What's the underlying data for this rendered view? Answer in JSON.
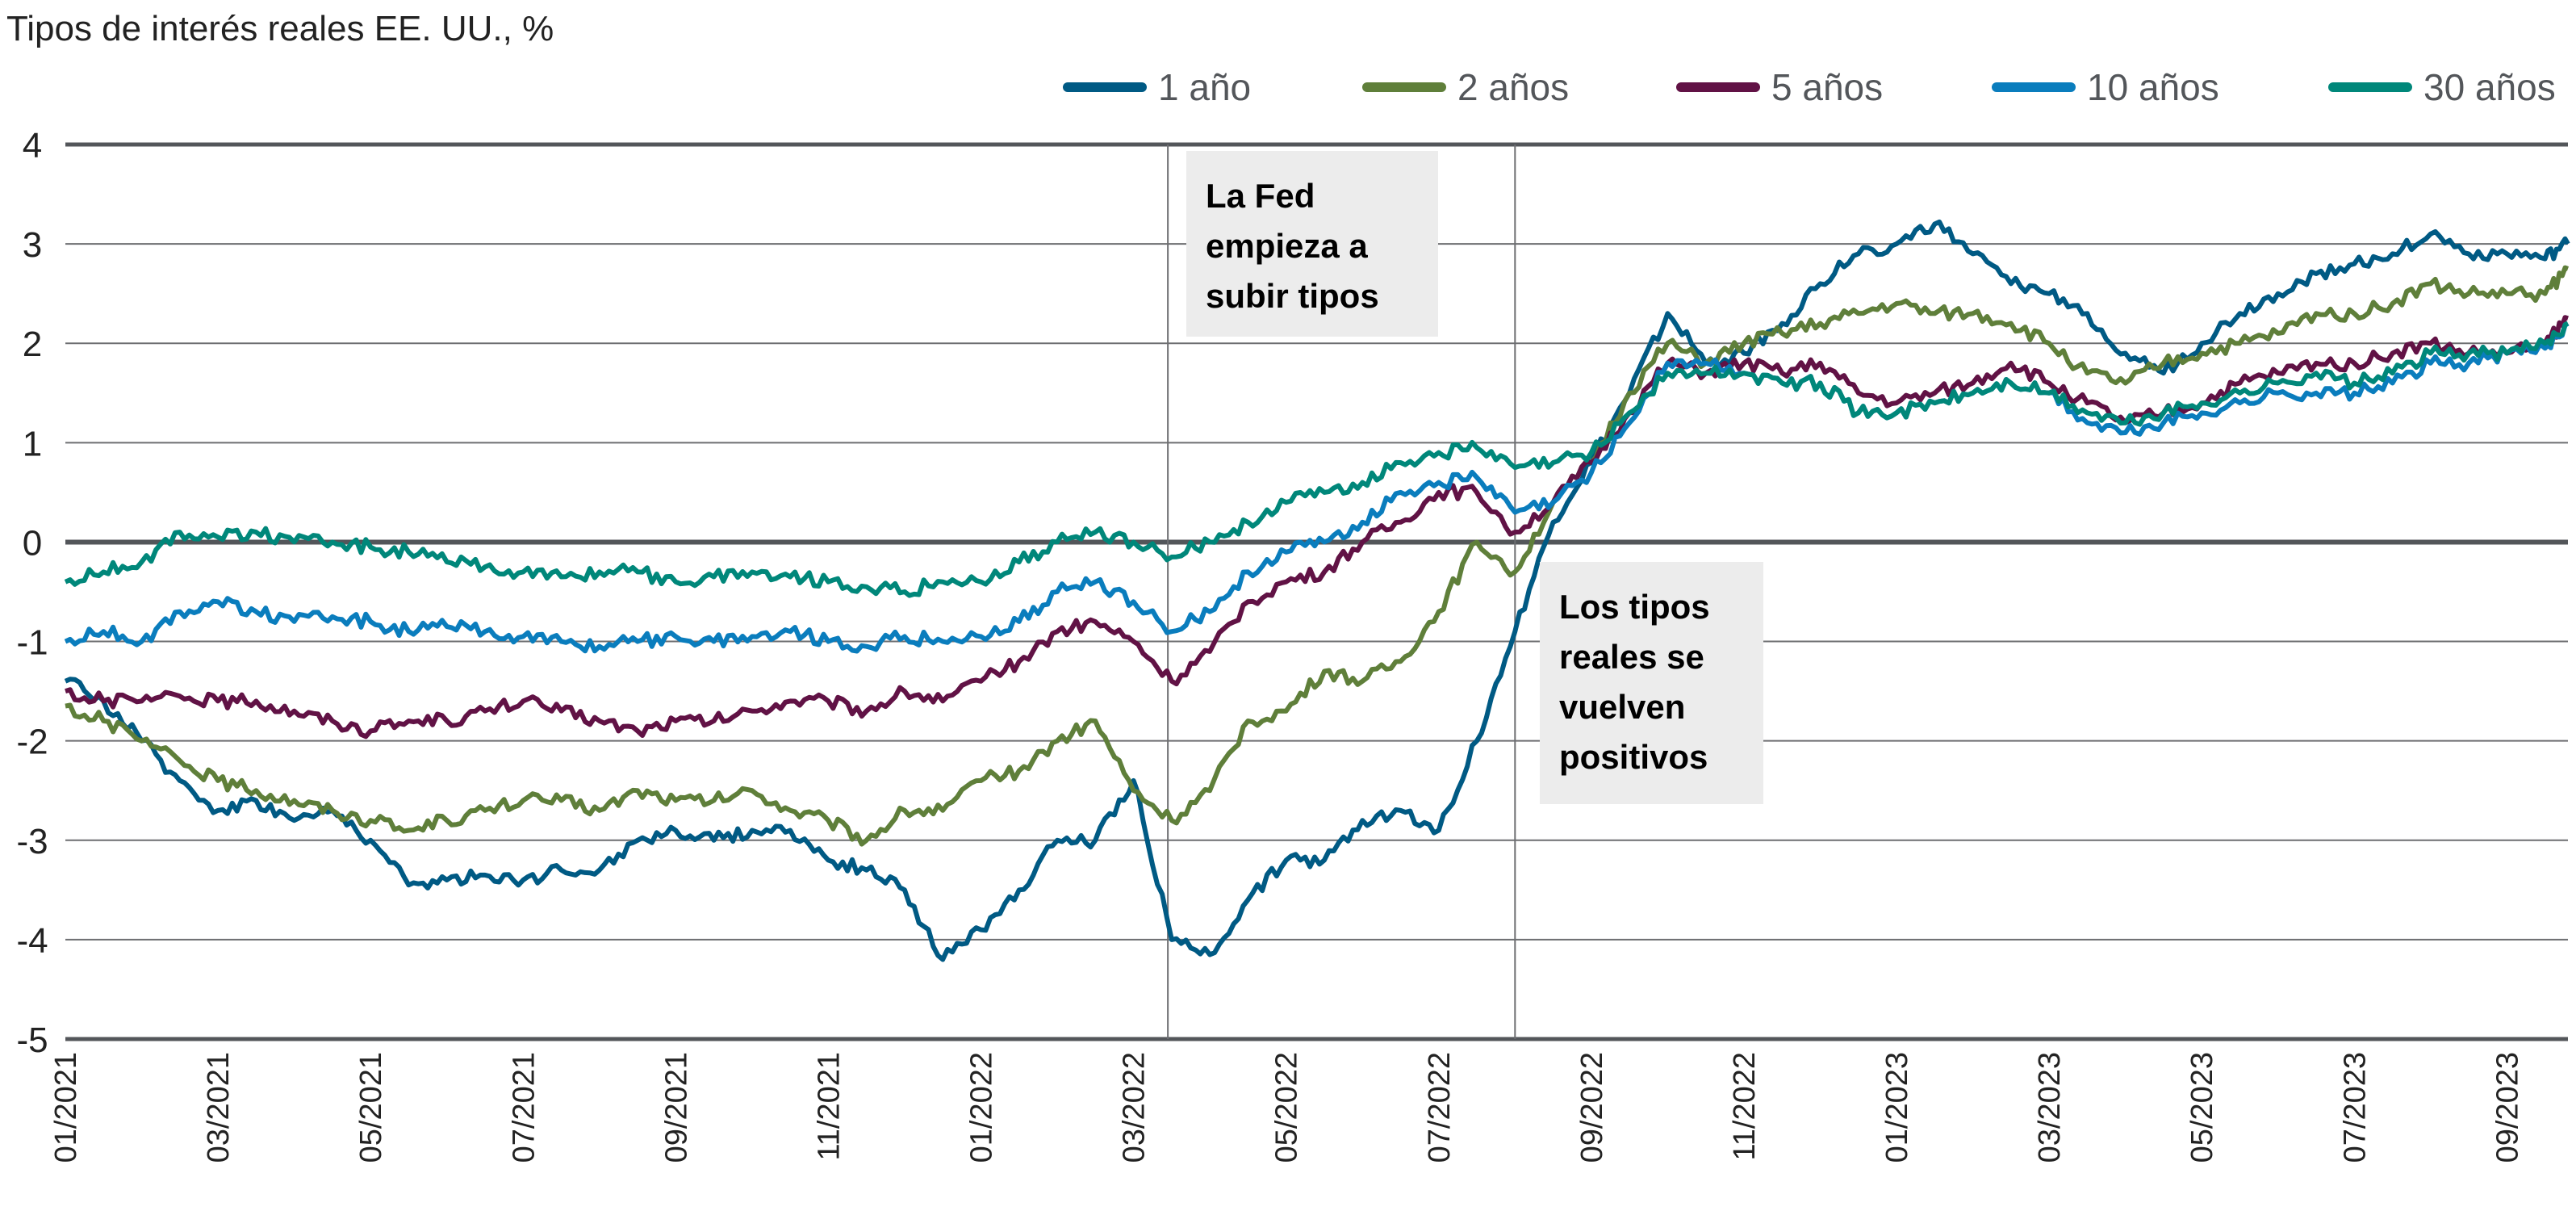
{
  "chart_data": {
    "type": "line",
    "title": "Tipos de interés reales EE. UU., %",
    "xlabel": "",
    "ylabel": "",
    "ylim": [
      -5,
      4
    ],
    "yticks": [
      4,
      3,
      2,
      1,
      0,
      -1,
      -2,
      -3,
      -4,
      -5
    ],
    "x_unit": "months since 01/2021",
    "xlim": [
      0,
      32.8
    ],
    "xtick_labels": [
      "01/2021",
      "03/2021",
      "05/2021",
      "07/2021",
      "09/2021",
      "11/2021",
      "01/2022",
      "03/2022",
      "05/2022",
      "07/2022",
      "09/2022",
      "11/2022",
      "01/2023",
      "03/2023",
      "05/2023",
      "07/2023",
      "09/2023"
    ],
    "xtick_values": [
      0,
      2,
      4,
      6,
      8,
      10,
      12,
      14,
      16,
      18,
      20,
      22,
      24,
      26,
      28,
      30,
      32
    ],
    "grid": true,
    "legend_position": "top-right",
    "x": [
      0,
      0.5,
      1,
      1.5,
      2,
      2.5,
      3,
      3.5,
      4,
      4.5,
      5,
      5.5,
      6,
      6.5,
      7,
      7.5,
      8,
      8.5,
      9,
      9.5,
      10,
      10.5,
      11,
      11.5,
      12,
      12.5,
      13,
      13.5,
      14,
      14.5,
      15,
      15.5,
      16,
      16.5,
      17,
      17.5,
      18,
      18.5,
      19,
      19.5,
      20,
      20.5,
      21,
      21.5,
      22,
      22.5,
      23,
      23.5,
      24,
      24.5,
      25,
      25.5,
      26,
      26.5,
      27,
      27.5,
      28,
      28.5,
      29,
      29.5,
      30,
      30.5,
      31,
      31.5,
      32,
      32.5,
      32.8
    ],
    "series": [
      {
        "name": "1 año",
        "color": "#005a84",
        "values": [
          -1.4,
          -1.6,
          -2.0,
          -2.4,
          -2.7,
          -2.6,
          -2.8,
          -2.7,
          -3.0,
          -3.45,
          -3.4,
          -3.35,
          -3.4,
          -3.3,
          -3.3,
          -3.0,
          -2.9,
          -3.0,
          -2.9,
          -2.9,
          -3.2,
          -3.3,
          -3.5,
          -4.2,
          -3.9,
          -3.5,
          -3.0,
          -3.0,
          -2.4,
          -4.0,
          -4.15,
          -3.6,
          -3.2,
          -3.2,
          -2.8,
          -2.7,
          -2.9,
          -2.0,
          -0.9,
          0.2,
          0.8,
          1.5,
          2.3,
          1.8,
          1.9,
          2.2,
          2.6,
          2.9,
          3.0,
          3.2,
          2.9,
          2.6,
          2.5,
          2.3,
          1.9,
          1.7,
          2.0,
          2.3,
          2.5,
          2.7,
          2.8,
          2.9,
          3.1,
          2.9,
          2.9,
          2.85,
          3.0
        ]
      },
      {
        "name": "2 años",
        "color": "#5f7f3a",
        "values": [
          -1.65,
          -1.8,
          -2.0,
          -2.2,
          -2.4,
          -2.5,
          -2.6,
          -2.7,
          -2.8,
          -2.9,
          -2.8,
          -2.7,
          -2.6,
          -2.6,
          -2.7,
          -2.5,
          -2.6,
          -2.6,
          -2.5,
          -2.7,
          -2.8,
          -3.0,
          -2.7,
          -2.7,
          -2.4,
          -2.3,
          -2.0,
          -1.8,
          -2.5,
          -2.8,
          -2.5,
          -1.8,
          -1.7,
          -1.3,
          -1.4,
          -1.2,
          -0.7,
          0.0,
          -0.3,
          0.4,
          0.8,
          1.5,
          2.0,
          1.8,
          2.0,
          2.1,
          2.2,
          2.3,
          2.4,
          2.3,
          2.3,
          2.2,
          2.0,
          1.7,
          1.6,
          1.8,
          1.9,
          2.0,
          2.1,
          2.3,
          2.3,
          2.4,
          2.6,
          2.5,
          2.5,
          2.5,
          2.75
        ]
      },
      {
        "name": "5 años",
        "color": "#611245",
        "values": [
          -1.5,
          -1.6,
          -1.6,
          -1.55,
          -1.6,
          -1.6,
          -1.7,
          -1.8,
          -1.9,
          -1.8,
          -1.8,
          -1.7,
          -1.6,
          -1.7,
          -1.8,
          -1.9,
          -1.8,
          -1.8,
          -1.7,
          -1.6,
          -1.6,
          -1.7,
          -1.5,
          -1.6,
          -1.4,
          -1.2,
          -0.9,
          -0.8,
          -1.0,
          -1.4,
          -1.1,
          -0.6,
          -0.4,
          -0.3,
          0.0,
          0.2,
          0.5,
          0.5,
          0.1,
          0.4,
          0.8,
          1.3,
          1.8,
          1.7,
          1.8,
          1.7,
          1.8,
          1.5,
          1.4,
          1.5,
          1.6,
          1.8,
          1.6,
          1.4,
          1.2,
          1.3,
          1.4,
          1.6,
          1.7,
          1.8,
          1.8,
          1.9,
          2.0,
          1.9,
          1.9,
          2.0,
          2.25
        ]
      },
      {
        "name": "10 años",
        "color": "#0a7dbd",
        "values": [
          -1.0,
          -0.9,
          -1.0,
          -0.7,
          -0.6,
          -0.7,
          -0.8,
          -0.75,
          -0.8,
          -0.9,
          -0.85,
          -0.9,
          -0.95,
          -1.0,
          -1.05,
          -1.0,
          -0.95,
          -1.0,
          -0.95,
          -0.9,
          -1.0,
          -1.05,
          -0.95,
          -1.0,
          -0.95,
          -0.8,
          -0.5,
          -0.4,
          -0.6,
          -0.9,
          -0.7,
          -0.3,
          -0.1,
          0.0,
          0.2,
          0.5,
          0.6,
          0.65,
          0.3,
          0.4,
          0.7,
          1.2,
          1.8,
          1.8,
          1.7,
          1.6,
          1.6,
          1.3,
          1.3,
          1.4,
          1.5,
          1.6,
          1.5,
          1.2,
          1.1,
          1.2,
          1.3,
          1.4,
          1.5,
          1.5,
          1.5,
          1.6,
          1.8,
          1.8,
          1.9,
          1.95,
          2.2
        ]
      },
      {
        "name": "30 años",
        "color": "#00877a",
        "values": [
          -0.4,
          -0.3,
          -0.2,
          0.1,
          0.05,
          0.1,
          0.0,
          0.0,
          -0.05,
          -0.1,
          -0.2,
          -0.25,
          -0.3,
          -0.35,
          -0.3,
          -0.3,
          -0.4,
          -0.35,
          -0.3,
          -0.35,
          -0.4,
          -0.45,
          -0.5,
          -0.4,
          -0.4,
          -0.2,
          0.0,
          0.1,
          0.0,
          -0.15,
          0.0,
          0.2,
          0.4,
          0.5,
          0.6,
          0.8,
          0.9,
          0.95,
          0.75,
          0.8,
          0.9,
          1.3,
          1.7,
          1.7,
          1.7,
          1.6,
          1.6,
          1.3,
          1.3,
          1.4,
          1.5,
          1.6,
          1.5,
          1.3,
          1.2,
          1.3,
          1.4,
          1.5,
          1.6,
          1.7,
          1.6,
          1.7,
          1.9,
          1.9,
          1.9,
          2.0,
          2.2
        ]
      }
    ],
    "annotations": [
      {
        "x": 14.45,
        "lines": [
          "La Fed",
          "empieza a",
          "subir tipos"
        ]
      },
      {
        "x": 19.0,
        "lines": [
          "Los tipos",
          "reales se",
          "vuelven",
          "positivos"
        ]
      }
    ]
  }
}
